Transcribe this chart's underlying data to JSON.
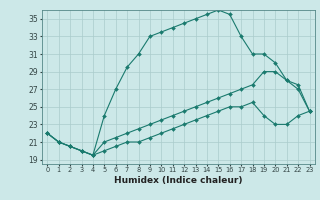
{
  "title": "",
  "xlabel": "Humidex (Indice chaleur)",
  "bg_color": "#cce8e8",
  "grid_color": "#aacccc",
  "line_color": "#1a7a6e",
  "xlim": [
    -0.5,
    23.5
  ],
  "ylim": [
    18.5,
    36.0
  ],
  "xticks": [
    0,
    1,
    2,
    3,
    4,
    5,
    6,
    7,
    8,
    9,
    10,
    11,
    12,
    13,
    14,
    15,
    16,
    17,
    18,
    19,
    20,
    21,
    22,
    23
  ],
  "yticks": [
    19,
    21,
    23,
    25,
    27,
    29,
    31,
    33,
    35
  ],
  "line1_x": [
    0,
    1,
    2,
    3,
    4,
    5,
    6,
    7,
    8,
    9,
    10,
    11,
    12,
    13,
    14,
    15,
    16,
    17,
    18,
    19,
    20,
    21,
    22,
    23
  ],
  "line1_y": [
    22,
    21,
    20.5,
    20,
    19.5,
    24,
    27,
    29.5,
    31,
    33,
    33.5,
    34,
    34.5,
    35.0,
    35.5,
    36.0,
    35.5,
    33,
    31,
    31,
    30,
    28,
    27,
    24.5
  ],
  "line2_x": [
    0,
    1,
    2,
    3,
    4,
    5,
    6,
    7,
    8,
    9,
    10,
    11,
    12,
    13,
    14,
    15,
    16,
    17,
    18,
    19,
    20,
    21,
    22,
    23
  ],
  "line2_y": [
    22,
    21,
    20.5,
    20,
    19.5,
    21,
    21.5,
    22,
    22.5,
    23,
    23.5,
    24,
    24.5,
    25,
    25.5,
    26,
    26.5,
    27,
    27.5,
    29.0,
    29.0,
    28,
    27.5,
    24.5
  ],
  "line3_x": [
    0,
    1,
    2,
    3,
    4,
    5,
    6,
    7,
    8,
    9,
    10,
    11,
    12,
    13,
    14,
    15,
    16,
    17,
    18,
    19,
    20,
    21,
    22,
    23
  ],
  "line3_y": [
    22,
    21,
    20.5,
    20,
    19.5,
    20,
    20.5,
    21,
    21,
    21.5,
    22,
    22.5,
    23,
    23.5,
    24,
    24.5,
    25,
    25,
    25.5,
    24,
    23,
    23,
    24,
    24.5
  ]
}
